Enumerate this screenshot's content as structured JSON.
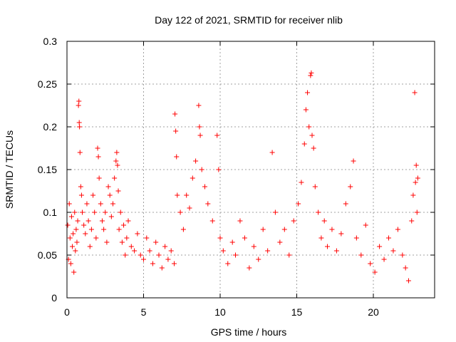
{
  "chart_data": {
    "type": "scatter",
    "title": "Day 122 of 2021, SRMTID for receiver nlib",
    "xlabel": "GPS time / hours",
    "ylabel": "SRMTID / TECUs",
    "xlim": [
      0,
      24
    ],
    "ylim": [
      0,
      0.3
    ],
    "x_ticks": [
      0,
      5,
      10,
      15,
      20
    ],
    "x_tick_labels": [
      "0",
      "5",
      "10",
      "15",
      "20"
    ],
    "y_ticks": [
      0,
      0.05,
      0.1,
      0.15,
      0.2,
      0.25,
      0.3
    ],
    "y_tick_labels": [
      "0",
      "0.05",
      "0.1",
      "0.15",
      "0.2",
      "0.25",
      "0.3"
    ],
    "grid": true,
    "marker": "+",
    "color": "#ff0000",
    "series": [
      {
        "name": "SRMTID",
        "points": [
          [
            0.05,
            0.085
          ],
          [
            0.1,
            0.045
          ],
          [
            0.15,
            0.11
          ],
          [
            0.2,
            0.07
          ],
          [
            0.25,
            0.04
          ],
          [
            0.3,
            0.095
          ],
          [
            0.35,
            0.06
          ],
          [
            0.4,
            0.075
          ],
          [
            0.45,
            0.03
          ],
          [
            0.5,
            0.1
          ],
          [
            0.55,
            0.055
          ],
          [
            0.6,
            0.08
          ],
          [
            0.65,
            0.065
          ],
          [
            0.7,
            0.09
          ],
          [
            0.75,
            0.225
          ],
          [
            0.78,
            0.23
          ],
          [
            0.8,
            0.205
          ],
          [
            0.82,
            0.2
          ],
          [
            0.85,
            0.17
          ],
          [
            0.9,
            0.13
          ],
          [
            0.95,
            0.12
          ],
          [
            1.0,
            0.1
          ],
          [
            1.1,
            0.085
          ],
          [
            1.2,
            0.075
          ],
          [
            1.3,
            0.11
          ],
          [
            1.4,
            0.09
          ],
          [
            1.5,
            0.06
          ],
          [
            1.6,
            0.08
          ],
          [
            1.7,
            0.12
          ],
          [
            1.8,
            0.1
          ],
          [
            1.9,
            0.07
          ],
          [
            2.0,
            0.175
          ],
          [
            2.05,
            0.165
          ],
          [
            2.1,
            0.14
          ],
          [
            2.2,
            0.11
          ],
          [
            2.3,
            0.09
          ],
          [
            2.4,
            0.08
          ],
          [
            2.5,
            0.1
          ],
          [
            2.6,
            0.065
          ],
          [
            2.7,
            0.13
          ],
          [
            2.8,
            0.12
          ],
          [
            2.9,
            0.095
          ],
          [
            3.0,
            0.11
          ],
          [
            3.1,
            0.14
          ],
          [
            3.2,
            0.16
          ],
          [
            3.25,
            0.17
          ],
          [
            3.3,
            0.155
          ],
          [
            3.35,
            0.125
          ],
          [
            3.4,
            0.08
          ],
          [
            3.5,
            0.1
          ],
          [
            3.6,
            0.065
          ],
          [
            3.7,
            0.085
          ],
          [
            3.8,
            0.05
          ],
          [
            3.9,
            0.07
          ],
          [
            4.0,
            0.09
          ],
          [
            4.2,
            0.06
          ],
          [
            4.4,
            0.055
          ],
          [
            4.6,
            0.075
          ],
          [
            4.8,
            0.05
          ],
          [
            5.0,
            0.045
          ],
          [
            5.2,
            0.07
          ],
          [
            5.4,
            0.055
          ],
          [
            5.6,
            0.04
          ],
          [
            5.8,
            0.065
          ],
          [
            6.0,
            0.05
          ],
          [
            6.2,
            0.035
          ],
          [
            6.4,
            0.06
          ],
          [
            6.6,
            0.045
          ],
          [
            6.8,
            0.055
          ],
          [
            7.0,
            0.04
          ],
          [
            7.05,
            0.215
          ],
          [
            7.1,
            0.195
          ],
          [
            7.15,
            0.165
          ],
          [
            7.2,
            0.12
          ],
          [
            7.4,
            0.1
          ],
          [
            7.6,
            0.08
          ],
          [
            7.8,
            0.12
          ],
          [
            8.0,
            0.105
          ],
          [
            8.2,
            0.14
          ],
          [
            8.4,
            0.16
          ],
          [
            8.6,
            0.225
          ],
          [
            8.65,
            0.2
          ],
          [
            8.7,
            0.19
          ],
          [
            8.8,
            0.15
          ],
          [
            9.0,
            0.13
          ],
          [
            9.2,
            0.11
          ],
          [
            9.5,
            0.09
          ],
          [
            9.8,
            0.19
          ],
          [
            9.9,
            0.15
          ],
          [
            10.0,
            0.07
          ],
          [
            10.2,
            0.055
          ],
          [
            10.5,
            0.04
          ],
          [
            10.8,
            0.065
          ],
          [
            11.0,
            0.05
          ],
          [
            11.3,
            0.09
          ],
          [
            11.6,
            0.07
          ],
          [
            11.9,
            0.035
          ],
          [
            12.2,
            0.06
          ],
          [
            12.5,
            0.045
          ],
          [
            12.8,
            0.08
          ],
          [
            13.1,
            0.055
          ],
          [
            13.4,
            0.17
          ],
          [
            13.6,
            0.1
          ],
          [
            13.9,
            0.065
          ],
          [
            14.2,
            0.08
          ],
          [
            14.5,
            0.05
          ],
          [
            14.8,
            0.09
          ],
          [
            15.1,
            0.11
          ],
          [
            15.3,
            0.135
          ],
          [
            15.5,
            0.18
          ],
          [
            15.6,
            0.22
          ],
          [
            15.7,
            0.24
          ],
          [
            15.8,
            0.2
          ],
          [
            15.9,
            0.26
          ],
          [
            15.95,
            0.263
          ],
          [
            16.0,
            0.19
          ],
          [
            16.1,
            0.175
          ],
          [
            16.2,
            0.13
          ],
          [
            16.4,
            0.1
          ],
          [
            16.6,
            0.07
          ],
          [
            16.8,
            0.09
          ],
          [
            17.0,
            0.06
          ],
          [
            17.3,
            0.08
          ],
          [
            17.6,
            0.055
          ],
          [
            17.9,
            0.075
          ],
          [
            18.2,
            0.11
          ],
          [
            18.5,
            0.13
          ],
          [
            18.7,
            0.16
          ],
          [
            18.9,
            0.07
          ],
          [
            19.2,
            0.05
          ],
          [
            19.5,
            0.085
          ],
          [
            19.8,
            0.04
          ],
          [
            20.1,
            0.03
          ],
          [
            20.4,
            0.06
          ],
          [
            20.7,
            0.045
          ],
          [
            21.0,
            0.07
          ],
          [
            21.3,
            0.055
          ],
          [
            21.6,
            0.08
          ],
          [
            21.9,
            0.05
          ],
          [
            22.1,
            0.035
          ],
          [
            22.3,
            0.02
          ],
          [
            22.5,
            0.09
          ],
          [
            22.6,
            0.12
          ],
          [
            22.7,
            0.24
          ],
          [
            22.75,
            0.135
          ],
          [
            22.8,
            0.155
          ],
          [
            22.85,
            0.1
          ],
          [
            22.9,
            0.14
          ]
        ]
      }
    ]
  }
}
